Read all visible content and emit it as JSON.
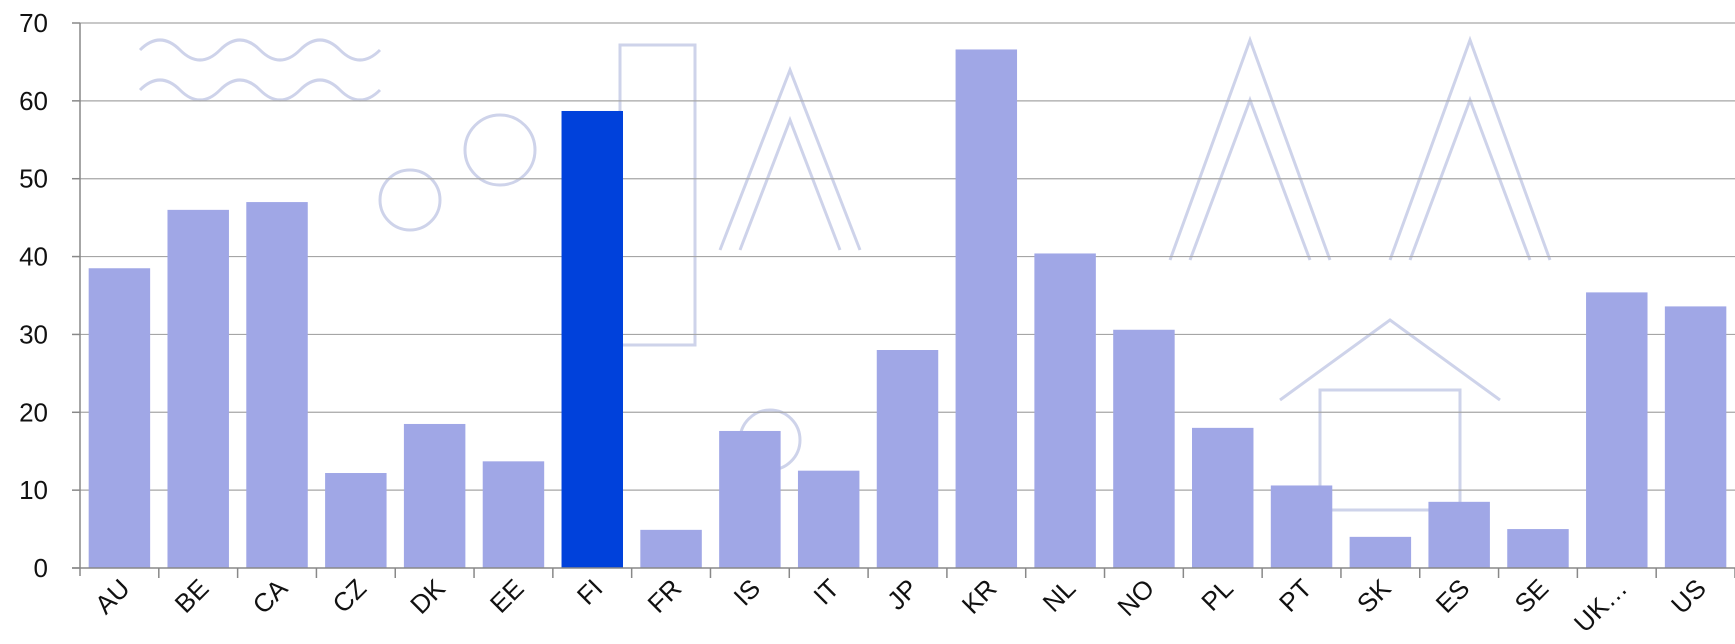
{
  "chart_data": {
    "type": "bar",
    "title": "",
    "xlabel": "",
    "ylabel": "",
    "ylim": [
      0,
      70
    ],
    "yticks": [
      0,
      10,
      20,
      30,
      40,
      50,
      60,
      70
    ],
    "grid": true,
    "legend": "none",
    "categories": [
      "AU",
      "BE",
      "CA",
      "CZ",
      "DK",
      "EE",
      "FI",
      "FR",
      "IS",
      "IT",
      "JP",
      "KR",
      "NL",
      "NO",
      "PL",
      "PT",
      "SK",
      "ES",
      "SE",
      "UK…",
      "US"
    ],
    "values": [
      38.5,
      46,
      47,
      12.2,
      18.5,
      13.7,
      58.7,
      4.9,
      17.6,
      12.5,
      28,
      66.6,
      40.4,
      30.6,
      18,
      10.6,
      4,
      8.5,
      5,
      35.4,
      33.6
    ],
    "highlight_category": "FI",
    "colors": {
      "bar": "#a0a7e6",
      "highlight": "#0041db",
      "grid": "#a6a6a6",
      "axis": "#888888"
    }
  }
}
